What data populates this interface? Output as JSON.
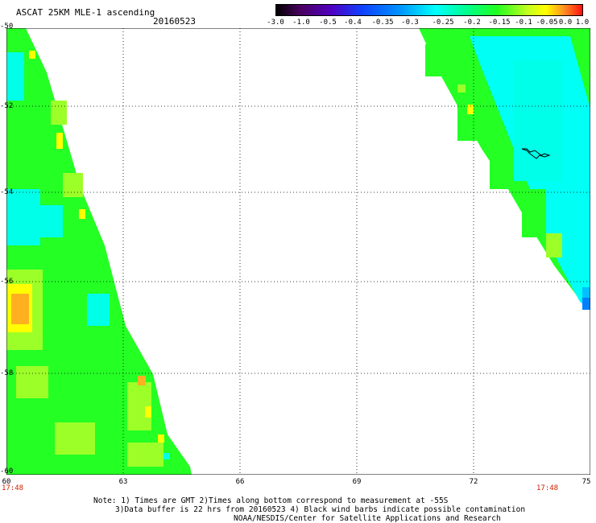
{
  "header": {
    "title": "ASCAT 25KM MLE-1 ascending",
    "date": "20160523"
  },
  "colorbar": {
    "labels": [
      "-3.0",
      "-1.0",
      "-0.5",
      "-0.4",
      "-0.35",
      "-0.3",
      "-0.25",
      "-0.2",
      "-0.15",
      "-0.1",
      "-0.05",
      "0.0",
      "1.0"
    ],
    "colors": [
      "#3b0030",
      "#5a00a0",
      "#2a28ff",
      "#0080ff",
      "#00c0ff",
      "#00ffff",
      "#00ffc0",
      "#20ff40",
      "#60ff20",
      "#c0ff20",
      "#ffff00",
      "#ffa020",
      "#ff2020"
    ]
  },
  "map": {
    "lon_labels": [
      "60",
      "63",
      "66",
      "69",
      "72",
      "75"
    ],
    "lat_labels": [
      "-50",
      "-52",
      "-54",
      "-56",
      "-58",
      "-60"
    ],
    "time_left": "17:48",
    "time_right": "17:48",
    "swath_colors": {
      "green": "#24ff24",
      "yellowgreen": "#9cff28",
      "yellow": "#ffff00",
      "orange": "#ffb020",
      "cyan": "#00ffe8",
      "lightcyan": "#00fff4",
      "blue": "#0080ff"
    }
  },
  "notes": {
    "line1": "Note: 1) Times are GMT 2)Times along bottom correspond to measurement at -55S",
    "line2": "3)Data buffer is 22 hrs from 20160523 4) Black wind barbs indicate possible contamination",
    "line3": "NOAA/NESDIS/Center for Satellite Applications and Research"
  }
}
